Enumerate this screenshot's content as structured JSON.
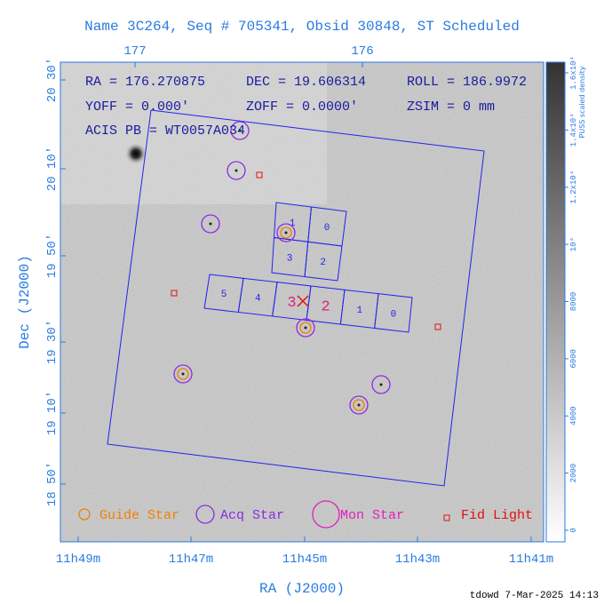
{
  "title": "Name 3C264, Seq # 705341, Obsid 30848, ST Scheduled",
  "top_axis": [
    "177",
    "176"
  ],
  "x_axis": {
    "label": "RA (J2000)",
    "ticks": [
      "11h49m",
      "11h47m",
      "11h45m",
      "11h43m",
      "11h41m"
    ]
  },
  "y_axis": {
    "label": "Dec (J2000)",
    "ticks": [
      "20 30'",
      "20 10'",
      "19 50'",
      "19 30'",
      "19 10'",
      "18 50'"
    ]
  },
  "info": [
    [
      "RA = 176.270875",
      "DEC = 19.606314",
      "ROLL = 186.9972"
    ],
    [
      "YOFF =   0.000'",
      "ZOFF =  0.0000'",
      "ZSIM = 0 mm"
    ],
    [
      "ACIS PB = WT0057A034"
    ]
  ],
  "chips_i": [
    "1",
    "0",
    "3",
    "2"
  ],
  "chips_s": [
    "5",
    "4",
    "3",
    "2",
    "1",
    "0"
  ],
  "legend": [
    "Guide Star",
    "Acq Star",
    "Mon Star",
    "Fid Light"
  ],
  "colorbar": {
    "label": "PUSS scaled density",
    "ticks": [
      "0",
      "2000",
      "4000",
      "6000",
      "8000",
      "10⁴",
      "1.2x10⁴",
      "1.4x10⁴",
      "1.6x10⁴"
    ]
  },
  "footer": "tdowd  7-Mar-2025 14:13"
}
